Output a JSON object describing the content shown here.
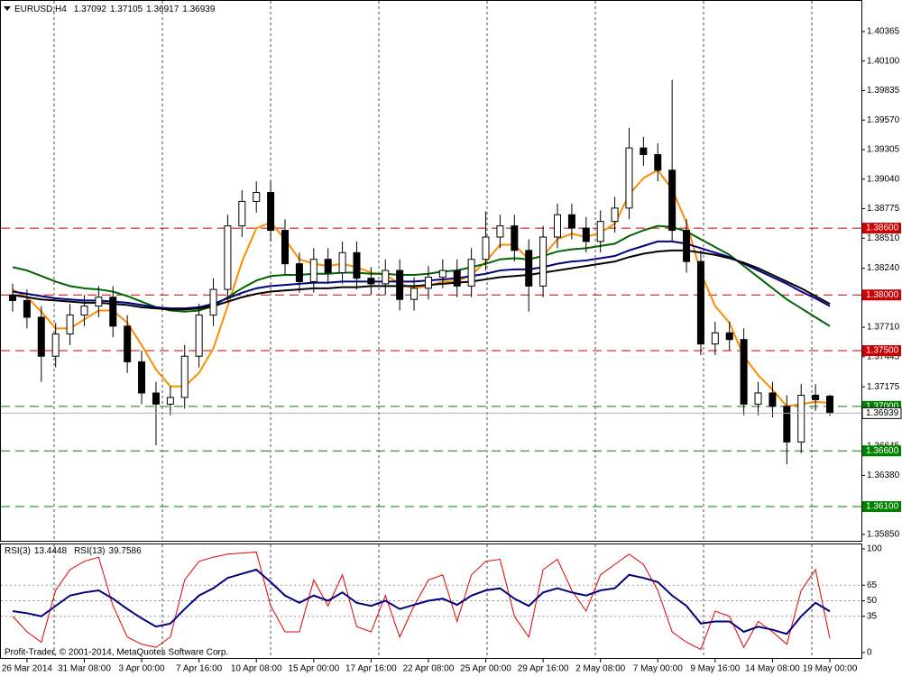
{
  "chart_data": [
    {
      "type": "candlestick",
      "title": "EURUSD,H4",
      "categories": [
        null,
        "26 Mar 2014",
        null,
        null,
        null,
        "31 Mar 08:00",
        null,
        null,
        null,
        "3 Apr 00:00",
        null,
        null,
        null,
        "7 Apr 16:00",
        null,
        null,
        null,
        "10 Apr 08:00",
        null,
        null,
        null,
        "15 Apr 00:00",
        null,
        null,
        null,
        "17 Apr 16:00",
        null,
        null,
        null,
        "22 Apr 08:00",
        null,
        null,
        null,
        "25 Apr 00:00",
        null,
        null,
        null,
        "29 Apr 16:00",
        null,
        null,
        null,
        "2 May 08:00",
        null,
        null,
        null,
        "7 May 00:00",
        null,
        null,
        null,
        "9 May 16:00",
        null,
        null,
        null,
        "14 May 08:00",
        null,
        null,
        null,
        "19 May 00:00"
      ],
      "open": [
        1.38,
        1.3795,
        1.378,
        1.3745,
        1.3765,
        1.3782,
        1.379,
        1.3798,
        1.3772,
        1.374,
        1.3712,
        1.3702,
        1.3708,
        1.3745,
        1.3782,
        1.3805,
        1.3862,
        1.3884,
        1.3892,
        1.3858,
        1.3828,
        1.3812,
        1.3832,
        1.382,
        1.3838,
        1.3815,
        1.381,
        1.3822,
        1.3796,
        1.3806,
        1.3816,
        1.3822,
        1.3808,
        1.3832,
        1.3852,
        1.3862,
        1.384,
        1.3808,
        1.3852,
        1.3872,
        1.386,
        1.3848,
        1.3866,
        1.3878,
        1.3932,
        1.3926,
        1.3912,
        1.3858,
        1.383,
        1.3756,
        1.3766,
        1.376,
        1.3702,
        1.3712,
        1.37,
        1.3668,
        1.371,
        1.37092
      ],
      "high": [
        1.381,
        1.3805,
        1.379,
        1.3775,
        1.3792,
        1.38,
        1.3808,
        1.3808,
        1.3782,
        1.375,
        1.3722,
        1.3718,
        1.3755,
        1.3792,
        1.3815,
        1.3872,
        1.3894,
        1.3902,
        1.3902,
        1.3868,
        1.3838,
        1.3842,
        1.3842,
        1.3848,
        1.3848,
        1.3825,
        1.3832,
        1.3832,
        1.3816,
        1.3826,
        1.3832,
        1.3832,
        1.3842,
        1.3875,
        1.3872,
        1.3872,
        1.385,
        1.3862,
        1.3882,
        1.3882,
        1.387,
        1.3876,
        1.3888,
        1.395,
        1.3942,
        1.3936,
        1.3993,
        1.3868,
        1.384,
        1.3776,
        1.3776,
        1.377,
        1.3722,
        1.3722,
        1.371,
        1.372,
        1.372,
        1.37105
      ],
      "low": [
        1.3785,
        1.377,
        1.3722,
        1.3735,
        1.3755,
        1.3772,
        1.378,
        1.3762,
        1.373,
        1.3702,
        1.3665,
        1.3692,
        1.3698,
        1.3735,
        1.3772,
        1.3795,
        1.3852,
        1.3874,
        1.3848,
        1.3818,
        1.3802,
        1.3802,
        1.381,
        1.381,
        1.3805,
        1.38,
        1.38,
        1.3786,
        1.3786,
        1.3796,
        1.3806,
        1.3798,
        1.3798,
        1.3822,
        1.3842,
        1.383,
        1.3785,
        1.3798,
        1.3842,
        1.385,
        1.3838,
        1.3838,
        1.3856,
        1.3868,
        1.3916,
        1.3902,
        1.3848,
        1.382,
        1.3746,
        1.3746,
        1.375,
        1.3692,
        1.3692,
        1.369,
        1.3648,
        1.3658,
        1.3696,
        1.36917
      ],
      "close": [
        1.3795,
        1.378,
        1.3745,
        1.3765,
        1.3782,
        1.379,
        1.3798,
        1.3772,
        1.374,
        1.3712,
        1.3702,
        1.3708,
        1.3745,
        1.3782,
        1.3805,
        1.3862,
        1.3884,
        1.3892,
        1.3858,
        1.3828,
        1.3812,
        1.3832,
        1.382,
        1.3838,
        1.3815,
        1.381,
        1.3822,
        1.3796,
        1.3806,
        1.3816,
        1.3822,
        1.3808,
        1.3832,
        1.3852,
        1.3862,
        1.384,
        1.3808,
        1.3852,
        1.3872,
        1.386,
        1.3848,
        1.3866,
        1.3878,
        1.3932,
        1.3926,
        1.3912,
        1.3858,
        1.383,
        1.3756,
        1.3766,
        1.376,
        1.3702,
        1.3712,
        1.37,
        1.3668,
        1.371,
        1.3706,
        1.36939
      ],
      "up_color": "#ffffff",
      "down_color": "#000000",
      "lines": [
        {
          "color": "#ff8c00",
          "values": [
            1.3805,
            1.3798,
            1.3785,
            1.377,
            1.377,
            1.3778,
            1.3786,
            1.3786,
            1.3775,
            1.3755,
            1.3733,
            1.3718,
            1.3718,
            1.373,
            1.3752,
            1.379,
            1.383,
            1.386,
            1.3865,
            1.385,
            1.3832,
            1.3828,
            1.3826,
            1.3828,
            1.3825,
            1.382,
            1.3818,
            1.381,
            1.3806,
            1.3808,
            1.3812,
            1.3812,
            1.3818,
            1.383,
            1.3845,
            1.3845,
            1.3832,
            1.3835,
            1.385,
            1.3855,
            1.3852,
            1.3856,
            1.3864,
            1.389,
            1.3905,
            1.3912,
            1.3895,
            1.3865,
            1.382,
            1.379,
            1.3775,
            1.3745,
            1.3728,
            1.3715,
            1.37,
            1.3702,
            1.3704,
            1.3703
          ]
        },
        {
          "color": "#006400",
          "values": [
            1.3825,
            1.3822,
            1.3817,
            1.3812,
            1.3808,
            1.3806,
            1.3805,
            1.3803,
            1.3799,
            1.3794,
            1.3789,
            1.3786,
            1.3785,
            1.3786,
            1.379,
            1.3798,
            1.3806,
            1.3813,
            1.3817,
            1.3818,
            1.3818,
            1.3819,
            1.3819,
            1.382,
            1.382,
            1.3819,
            1.3819,
            1.3818,
            1.3818,
            1.3819,
            1.3821,
            1.3822,
            1.3825,
            1.3828,
            1.3832,
            1.3833,
            1.3832,
            1.3835,
            1.3839,
            1.3841,
            1.3842,
            1.3844,
            1.3846,
            1.3853,
            1.3858,
            1.3862,
            1.3861,
            1.3857,
            1.385,
            1.3843,
            1.3836,
            1.3826,
            1.3816,
            1.3806,
            1.3796,
            1.3788,
            1.378,
            1.3772
          ]
        },
        {
          "color": "#000080",
          "values": [
            1.3803,
            1.3801,
            1.3799,
            1.3797,
            1.3796,
            1.3795,
            1.3795,
            1.3794,
            1.3793,
            1.3791,
            1.3789,
            1.3788,
            1.3788,
            1.3789,
            1.3792,
            1.3797,
            1.3802,
            1.3806,
            1.3808,
            1.3809,
            1.381,
            1.3811,
            1.3811,
            1.3812,
            1.3812,
            1.3812,
            1.3812,
            1.3812,
            1.3812,
            1.3813,
            1.3814,
            1.3815,
            1.3817,
            1.3819,
            1.3822,
            1.3823,
            1.3823,
            1.3825,
            1.3828,
            1.383,
            1.3831,
            1.3833,
            1.3835,
            1.384,
            1.3844,
            1.3848,
            1.3848,
            1.3846,
            1.3842,
            1.3838,
            1.3834,
            1.3828,
            1.3822,
            1.3816,
            1.381,
            1.3803,
            1.3797,
            1.379
          ]
        },
        {
          "color": "#000000",
          "values": [
            1.38,
            1.3798,
            1.3796,
            1.3795,
            1.3794,
            1.3793,
            1.3793,
            1.3792,
            1.3791,
            1.3789,
            1.3788,
            1.3787,
            1.3787,
            1.3788,
            1.379,
            1.3794,
            1.3798,
            1.3801,
            1.3803,
            1.3804,
            1.3805,
            1.3806,
            1.3806,
            1.3807,
            1.3807,
            1.3808,
            1.3808,
            1.3808,
            1.3808,
            1.3809,
            1.381,
            1.3811,
            1.3812,
            1.3814,
            1.3816,
            1.3817,
            1.3818,
            1.382,
            1.3822,
            1.3824,
            1.3826,
            1.3828,
            1.383,
            1.3834,
            1.3837,
            1.3839,
            1.384,
            1.384,
            1.3838,
            1.3836,
            1.3833,
            1.3829,
            1.3824,
            1.3818,
            1.3812,
            1.3806,
            1.3799,
            1.3792
          ]
        }
      ],
      "levels": [
        {
          "value": 1.386,
          "label": "1.38600",
          "color": "#cc0000"
        },
        {
          "value": 1.38,
          "label": "1.38000",
          "color": "#cc0000"
        },
        {
          "value": 1.375,
          "label": "1.37500",
          "color": "#cc0000"
        },
        {
          "value": 1.37,
          "label": "1.37000",
          "color": "#008000"
        },
        {
          "value": 1.366,
          "label": "1.36600",
          "color": "#008000"
        },
        {
          "value": 1.361,
          "label": "1.36100",
          "color": "#008000"
        }
      ],
      "ylim": [
        1.35793,
        1.40648
      ],
      "yticks": [
        1.40365,
        {
          "value": 1.401,
          "label": "1.40100"
        },
        1.39835,
        {
          "value": 1.3957,
          "label": "1.39570"
        },
        1.39305,
        {
          "value": 1.3904,
          "label": "1.39040"
        },
        1.38775,
        {
          "value": 1.3851,
          "label": "1.38510"
        },
        {
          "value": 1.3824,
          "label": "1.38240"
        },
        {
          "value": 1.3771,
          "label": "1.37710"
        },
        1.37445,
        1.37175,
        1.36645,
        {
          "value": 1.3638,
          "label": "1.36380"
        },
        {
          "value": 1.3585,
          "label": "1.35850"
        }
      ]
    },
    {
      "type": "line",
      "series": [
        {
          "name": "RSI(3)",
          "color": "#e00000",
          "values": [
            35,
            20,
            10,
            60,
            80,
            88,
            92,
            45,
            15,
            8,
            5,
            15,
            70,
            88,
            92,
            95,
            96,
            97,
            45,
            20,
            20,
            70,
            45,
            75,
            25,
            20,
            55,
            15,
            45,
            70,
            75,
            30,
            75,
            88,
            90,
            35,
            15,
            80,
            90,
            60,
            40,
            75,
            85,
            95,
            85,
            60,
            20,
            10,
            3,
            40,
            35,
            5,
            30,
            20,
            8,
            60,
            80,
            13.4448
          ]
        },
        {
          "name": "RSI(13)",
          "color": "#000080",
          "values": [
            40,
            38,
            35,
            45,
            55,
            58,
            60,
            52,
            42,
            33,
            25,
            28,
            42,
            55,
            62,
            72,
            76,
            80,
            68,
            55,
            48,
            55,
            50,
            58,
            48,
            45,
            50,
            42,
            46,
            50,
            52,
            46,
            55,
            60,
            62,
            52,
            45,
            58,
            62,
            58,
            55,
            60,
            62,
            75,
            72,
            68,
            55,
            45,
            28,
            30,
            30,
            20,
            25,
            22,
            18,
            35,
            48,
            39.7586
          ]
        }
      ],
      "ylim": [
        0,
        100
      ],
      "yticks": [
        0,
        35,
        50,
        65,
        100
      ],
      "annotation": "Profit-Trader, © 2001-2014, MetaQuotes Software Corp."
    }
  ]
}
